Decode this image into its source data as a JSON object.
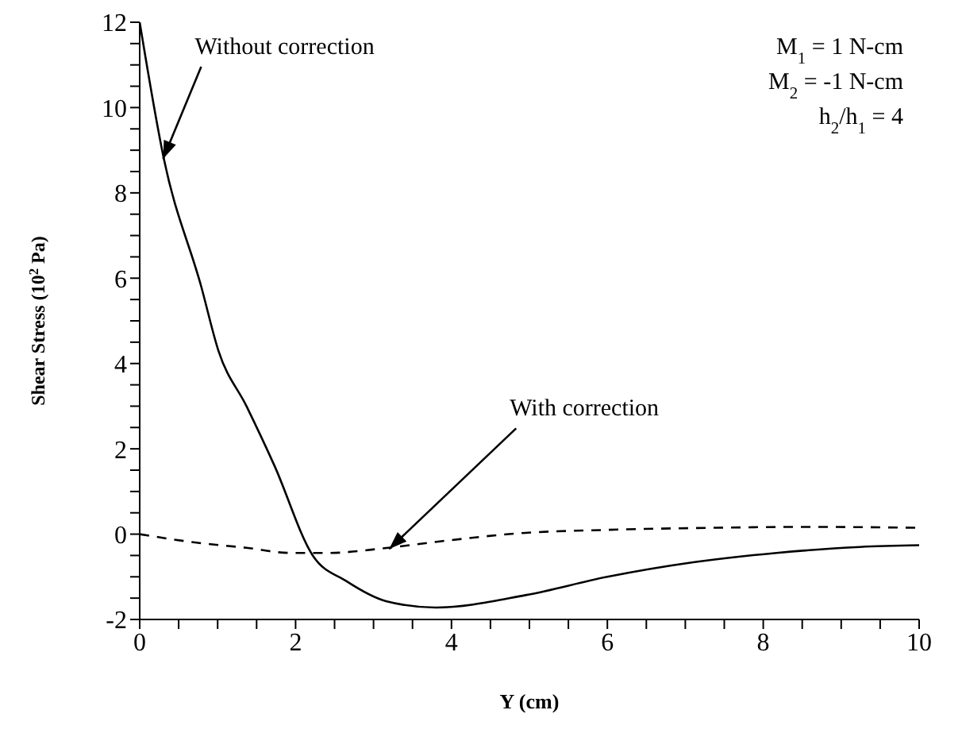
{
  "chart_data": {
    "type": "line",
    "xlabel": "Y  (cm)",
    "ylabel": "Shear Stress  (10$^{2}$ Pa)",
    "xlim": [
      0,
      10
    ],
    "ylim": [
      -2,
      12
    ],
    "xticks": [
      0,
      {
        "value": 0.5,
        "label": null
      },
      {
        "value": 1,
        "label": null
      },
      {
        "value": 1.5,
        "label": null
      },
      2,
      {
        "value": 2.5,
        "label": null
      },
      {
        "value": 3,
        "label": null
      },
      {
        "value": 3.5,
        "label": null
      },
      4,
      {
        "value": 4.5,
        "label": null
      },
      {
        "value": 5,
        "label": null
      },
      {
        "value": 5.5,
        "label": null
      },
      6,
      {
        "value": 6.5,
        "label": null
      },
      {
        "value": 7,
        "label": null
      },
      {
        "value": 7.5,
        "label": null
      },
      8,
      {
        "value": 8.5,
        "label": null
      },
      {
        "value": 9,
        "label": null
      },
      {
        "value": 9.5,
        "label": null
      },
      10
    ],
    "yticks": [
      -2,
      {
        "value": -1.5,
        "label": null
      },
      {
        "value": -1,
        "label": null
      },
      {
        "value": -0.5,
        "label": null
      },
      0,
      {
        "value": 0.5,
        "label": null
      },
      {
        "value": 1,
        "label": null
      },
      {
        "value": 1.5,
        "label": null
      },
      2,
      {
        "value": 2.5,
        "label": null
      },
      {
        "value": 3,
        "label": null
      },
      {
        "value": 3.5,
        "label": null
      },
      4,
      {
        "value": 4.5,
        "label": null
      },
      {
        "value": 5,
        "label": null
      },
      {
        "value": 5.5,
        "label": null
      },
      6,
      {
        "value": 6.5,
        "label": null
      },
      {
        "value": 7,
        "label": null
      },
      {
        "value": 7.5,
        "label": null
      },
      8,
      {
        "value": 8.5,
        "label": null
      },
      {
        "value": 9,
        "label": null
      },
      {
        "value": 9.5,
        "label": null
      },
      10,
      {
        "value": 10.5,
        "label": null
      },
      {
        "value": 11,
        "label": null
      },
      {
        "value": 11.5,
        "label": null
      },
      12
    ],
    "series": [
      {
        "color": "#000000",
        "line_style": "solid",
        "x": [
          0,
          0.31,
          0.79,
          1.01,
          1.37,
          1.73,
          2.22,
          2.65,
          3.16,
          3.8,
          4.95,
          6.0,
          7.1,
          8.17,
          9.24,
          10
        ],
        "values": [
          12,
          8.8,
          5.8,
          4.3,
          3.0,
          1.6,
          -0.5,
          -1.1,
          -1.57,
          -1.72,
          -1.43,
          -1.0,
          -0.66,
          -0.44,
          -0.3,
          -0.26
        ]
      },
      {
        "color": "#000000",
        "line_style": "dashed",
        "x": [
          0,
          0.73,
          1.37,
          1.93,
          2.43,
          3.14,
          3.85,
          4.95,
          6.0,
          7.4,
          8.5,
          10
        ],
        "values": [
          0,
          -0.2,
          -0.32,
          -0.44,
          -0.44,
          -0.33,
          -0.17,
          0.03,
          0.1,
          0.15,
          0.17,
          0.15
        ]
      }
    ],
    "annotations": [
      {
        "text": "Without correction",
        "x": 0.3,
        "y": 8.8
      },
      {
        "text": "With correction",
        "x": 3.2,
        "y": -0.35
      },
      "M$_{1}$ =   1 N-cm",
      "M$_{2}$ = -1 N-cm",
      "h$_{2}$/h$_{1}$ = 4"
    ]
  }
}
